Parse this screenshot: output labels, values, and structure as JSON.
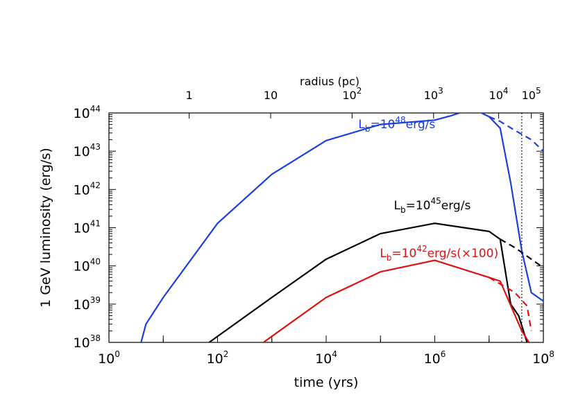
{
  "chart_data": {
    "type": "line",
    "x_scale": "log",
    "y_scale": "log",
    "xlim": [
      1,
      100000000
    ],
    "ylim": [
      1e+38,
      1e+44
    ],
    "xlabel": "time (yrs)",
    "ylabel": "1 GeV luminosity (erg/s)",
    "x2label": "radius (pc)",
    "grid": false,
    "x_ticks": [
      {
        "base": "10",
        "exp": "0",
        "value": 1
      },
      {
        "base": "10",
        "exp": "2",
        "value": 100
      },
      {
        "base": "10",
        "exp": "4",
        "value": 10000
      },
      {
        "base": "10",
        "exp": "6",
        "value": 1000000
      },
      {
        "base": "10",
        "exp": "8",
        "value": 100000000
      }
    ],
    "y_ticks": [
      {
        "base": "10",
        "exp": "38",
        "value": 1e+38
      },
      {
        "base": "10",
        "exp": "39",
        "value": 1e+39
      },
      {
        "base": "10",
        "exp": "40",
        "value": 1e+40
      },
      {
        "base": "10",
        "exp": "41",
        "value": 1e+41
      },
      {
        "base": "10",
        "exp": "42",
        "value": 1e+42
      },
      {
        "base": "10",
        "exp": "43",
        "value": 1e+43
      },
      {
        "base": "10",
        "exp": "44",
        "value": 1e+44
      }
    ],
    "top_ticks": [
      {
        "text": "1",
        "base": "",
        "exp": "",
        "time": 30
      },
      {
        "text": "10",
        "base": "",
        "exp": "",
        "time": 950
      },
      {
        "text": "",
        "base": "10",
        "exp": "2",
        "time": 30000
      },
      {
        "text": "",
        "base": "10",
        "exp": "3",
        "time": 950000
      },
      {
        "text": "",
        "base": "10",
        "exp": "4",
        "time": 15000000
      },
      {
        "text": "",
        "base": "10",
        "exp": "5",
        "time": 60000000
      }
    ],
    "vertical_line": {
      "x": 40000000,
      "style": "dotted",
      "color": "#000000"
    },
    "series": [
      {
        "label_prefix": "L",
        "label_sub": "b",
        "label_mid": "=10",
        "label_sup": "48",
        "label_suffix": "erg/s",
        "label_at": [
          200000,
          4e+43
        ],
        "color": "#1a3fe0",
        "line": [
          [
            3.9,
            1e+38
          ],
          [
            4.8,
            3e+38
          ],
          [
            10,
            1.5e+39
          ],
          [
            100,
            1.3e+41
          ],
          [
            1000,
            2.5e+42
          ],
          [
            10000,
            1.9e+43
          ],
          [
            100000,
            5e+43
          ],
          [
            1000000,
            6.5e+43
          ],
          [
            2000000,
            8.5e+43
          ],
          [
            5000000,
            1.3e+44
          ],
          [
            10000000,
            8e+43
          ],
          [
            16000000,
            4e+43
          ],
          [
            25000000,
            1.5e+42
          ],
          [
            40000000,
            2.5e+40
          ],
          [
            60000000,
            2e+39
          ],
          [
            100000000,
            1.2e+39
          ]
        ],
        "dashed": [
          [
            10000000,
            8e+43
          ],
          [
            16000000,
            6e+43
          ],
          [
            30000000,
            3.5e+43
          ],
          [
            60000000,
            2e+43
          ],
          [
            100000000,
            1e+43
          ]
        ]
      },
      {
        "label_prefix": "L",
        "label_sub": "b",
        "label_mid": "=10",
        "label_sup": "45",
        "label_suffix": "erg/s",
        "label_at": [
          900000,
          3e+41
        ],
        "color": "#000000",
        "line": [
          [
            70,
            1e+38
          ],
          [
            1000,
            1.5e+39
          ],
          [
            10000,
            1.5e+40
          ],
          [
            100000,
            7e+40
          ],
          [
            1000000,
            1.3e+41
          ],
          [
            10000000,
            8e+40
          ],
          [
            16000000,
            5e+40
          ],
          [
            25000000,
            1e+39
          ],
          [
            35000000,
            5e+38
          ],
          [
            50000000,
            1e+38
          ]
        ],
        "dashed": [
          [
            16000000,
            5e+40
          ],
          [
            30000000,
            3e+40
          ],
          [
            60000000,
            1.5e+40
          ],
          [
            100000000,
            9e+39
          ]
        ]
      },
      {
        "label_prefix": "L",
        "label_sub": "b",
        "label_mid": "=10",
        "label_sup": "42",
        "label_suffix": "erg/s(×100)",
        "label_at": [
          1200000,
          1.7e+40
        ],
        "color": "#e01010",
        "line": [
          [
            700,
            1e+38
          ],
          [
            10000,
            1.5e+39
          ],
          [
            100000,
            7e+39
          ],
          [
            1000000,
            1.4e+40
          ],
          [
            10000000,
            5e+39
          ],
          [
            16000000,
            4e+39
          ],
          [
            40000000,
            2e+38
          ],
          [
            60000000,
            8e+37
          ]
        ],
        "dashed": [
          [
            10000000,
            5e+39
          ],
          [
            30000000,
            2e+39
          ],
          [
            50000000,
            9e+38
          ],
          [
            60000000,
            2e+38
          ]
        ]
      }
    ]
  }
}
